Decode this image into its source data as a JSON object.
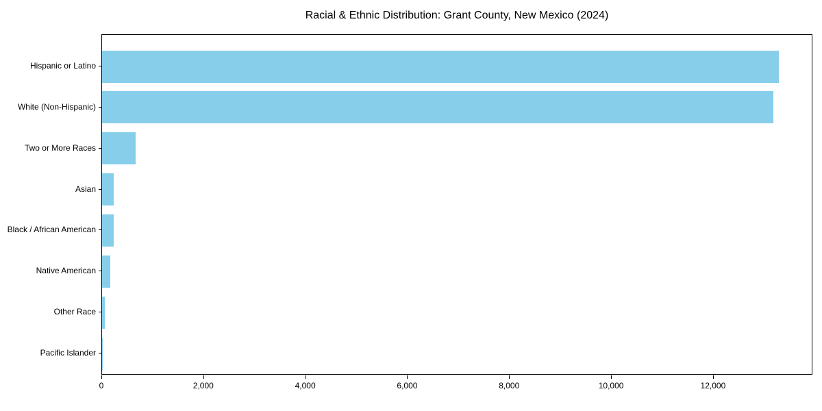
{
  "chart_data": {
    "type": "bar",
    "orientation": "horizontal",
    "title": "Racial & Ethnic Distribution: Grant County, New Mexico (2024)",
    "categories": [
      "Hispanic or Latino",
      "White (Non-Hispanic)",
      "Two or More Races",
      "Asian",
      "Black / African American",
      "Native American",
      "Other Race",
      "Pacific Islander"
    ],
    "values": [
      13280,
      13170,
      660,
      230,
      225,
      165,
      55,
      5
    ],
    "xlabel": "",
    "ylabel": "",
    "xlim": [
      0,
      13950
    ],
    "x_ticks": [
      0,
      2000,
      4000,
      6000,
      8000,
      10000,
      12000
    ],
    "x_tick_labels": [
      "0",
      "2,000",
      "4,000",
      "6,000",
      "8,000",
      "10,000",
      "12,000"
    ],
    "bar_color": "#87CEEB",
    "background_color": "#FFFFFF",
    "frame_color": "#000000",
    "grid": false,
    "legend_position": "none"
  }
}
